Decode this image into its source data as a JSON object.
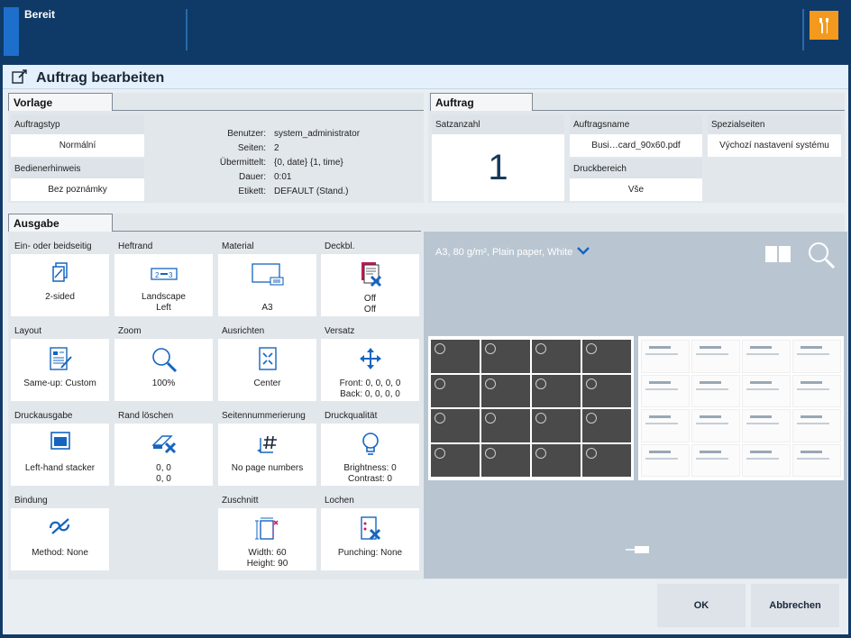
{
  "topbar": {
    "status": "Bereit"
  },
  "dialog": {
    "title": "Auftrag bearbeiten"
  },
  "vorlage": {
    "tab": "Vorlage",
    "auftragstyp_label": "Auftragstyp",
    "auftragstyp_value": "Normální",
    "bedienerhinweis_label": "Bedienerhinweis",
    "bedienerhinweis_value": "Bez poznámky",
    "meta": [
      {
        "k": "Benutzer:",
        "v": "system_administrator"
      },
      {
        "k": "Seiten:",
        "v": "2"
      },
      {
        "k": "Übermittelt:",
        "v": "{0, date} {1, time}"
      },
      {
        "k": "Dauer:",
        "v": "0:01"
      },
      {
        "k": "Etikett:",
        "v": "DEFAULT (Stand.)"
      }
    ]
  },
  "auftrag": {
    "tab": "Auftrag",
    "satzanzahl_label": "Satzanzahl",
    "satzanzahl_value": "1",
    "auftragsname_label": "Auftragsname",
    "auftragsname_value": "Busi…card_90x60.pdf",
    "spezialseiten_label": "Spezialseiten",
    "spezialseiten_value": "Výchozí nastavení systému",
    "druckbereich_label": "Druckbereich",
    "druckbereich_value": "Vše"
  },
  "ausgabe": {
    "tab": "Ausgabe",
    "tiles": [
      {
        "label": "Ein- oder beidseitig",
        "line1": "2-sided",
        "line2": ""
      },
      {
        "label": "Heftrand",
        "line1": "Landscape",
        "line2": "Left"
      },
      {
        "label": "Material",
        "line1": "A3",
        "line2": ""
      },
      {
        "label": "Deckbl.",
        "line1": "Off",
        "line2": "Off"
      },
      {
        "label": "Layout",
        "line1": "Same-up: Custom",
        "line2": ""
      },
      {
        "label": "Zoom",
        "line1": "100%",
        "line2": ""
      },
      {
        "label": "Ausrichten",
        "line1": "Center",
        "line2": ""
      },
      {
        "label": "Versatz",
        "line1": "Front: 0, 0, 0, 0",
        "line2": "Back: 0, 0, 0, 0"
      },
      {
        "label": "Druckausgabe",
        "line1": "Left-hand stacker",
        "line2": ""
      },
      {
        "label": "Rand löschen",
        "line1": "0, 0",
        "line2": "0, 0"
      },
      {
        "label": "Seitennummerierung",
        "line1": "No page numbers",
        "line2": ""
      },
      {
        "label": "Druckqualität",
        "line1": "Brightness: 0",
        "line2": "Contrast: 0"
      },
      {
        "label": "Bindung",
        "line1": "Method: None",
        "line2": ""
      },
      {
        "label": "Zuschnitt",
        "line1": "Width: 60",
        "line2": "Height: 90"
      },
      {
        "label": "Lochen",
        "line1": "Punching: None",
        "line2": ""
      }
    ]
  },
  "preview": {
    "media_info": "A3, 80 g/m², Plain paper, White"
  },
  "buttons": {
    "ok": "OK",
    "cancel": "Abbrechen"
  },
  "colors": {
    "header": "#0f3a67",
    "accent": "#1e6fcb",
    "wrench": "#f39a1e",
    "icon_blue": "#1565c0",
    "cancel_x": "#1565c0"
  }
}
